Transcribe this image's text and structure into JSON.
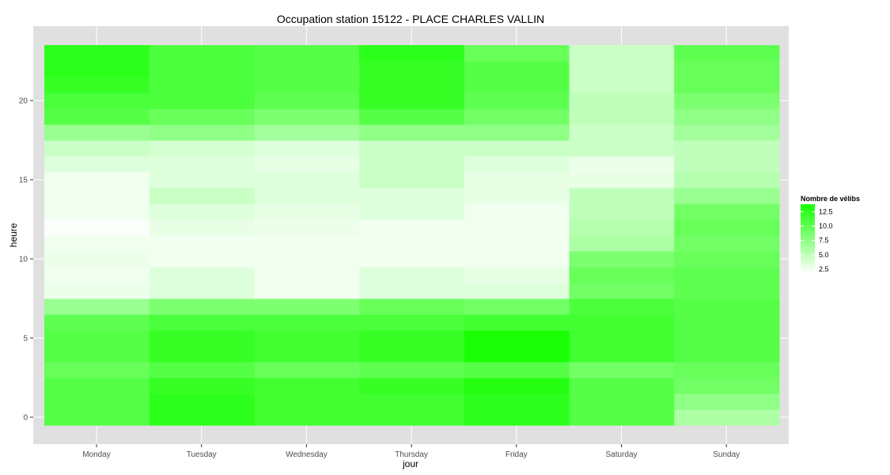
{
  "chart_data": {
    "type": "heatmap",
    "title": "Occupation station 15122 - PLACE CHARLES VALLIN",
    "xlabel": "jour",
    "ylabel": "heure",
    "categories": [
      "Monday",
      "Tuesday",
      "Wednesday",
      "Thursday",
      "Friday",
      "Saturday",
      "Sunday"
    ],
    "hours": [
      0,
      1,
      2,
      3,
      4,
      5,
      6,
      7,
      8,
      9,
      10,
      11,
      12,
      13,
      14,
      15,
      16,
      17,
      18,
      19,
      20,
      21,
      22,
      23
    ],
    "values": [
      [
        10.5,
        12.5,
        11.5,
        11.5,
        12.5,
        10.5,
        6.0
      ],
      [
        10.5,
        12.5,
        11.5,
        11.5,
        12.5,
        10.5,
        7.5
      ],
      [
        10.5,
        12.0,
        11.5,
        12.0,
        13.0,
        10.5,
        9.0
      ],
      [
        9.5,
        10.5,
        9.5,
        10.0,
        10.5,
        9.0,
        9.5
      ],
      [
        10.5,
        12.0,
        11.5,
        12.0,
        13.5,
        11.5,
        10.5
      ],
      [
        10.5,
        12.0,
        11.5,
        12.0,
        13.5,
        11.5,
        10.5
      ],
      [
        10.0,
        11.0,
        11.0,
        11.0,
        11.5,
        11.5,
        10.5
      ],
      [
        7.0,
        8.5,
        8.5,
        9.5,
        9.0,
        11.0,
        10.5
      ],
      [
        2.8,
        3.5,
        2.5,
        3.5,
        3.5,
        9.0,
        10.0
      ],
      [
        2.5,
        3.5,
        2.5,
        3.5,
        3.0,
        9.5,
        10.0
      ],
      [
        2.8,
        2.5,
        2.5,
        2.5,
        2.5,
        8.5,
        9.5
      ],
      [
        2.5,
        2.5,
        2.5,
        2.5,
        2.5,
        6.0,
        9.0
      ],
      [
        2.0,
        3.0,
        2.8,
        2.5,
        2.5,
        5.5,
        9.5
      ],
      [
        2.5,
        3.5,
        3.0,
        3.5,
        2.5,
        5.0,
        9.0
      ],
      [
        2.5,
        4.5,
        3.5,
        3.5,
        3.0,
        5.0,
        7.0
      ],
      [
        2.5,
        3.5,
        3.5,
        4.5,
        3.0,
        3.0,
        5.5
      ],
      [
        3.5,
        3.5,
        3.0,
        4.5,
        3.5,
        2.8,
        5.0
      ],
      [
        4.5,
        4.0,
        3.5,
        4.5,
        4.5,
        4.5,
        5.0
      ],
      [
        7.0,
        7.5,
        6.5,
        7.5,
        7.5,
        4.5,
        6.5
      ],
      [
        10.5,
        9.5,
        8.5,
        10.5,
        9.0,
        5.0,
        7.5
      ],
      [
        11.0,
        11.0,
        10.0,
        12.0,
        10.0,
        5.0,
        8.5
      ],
      [
        12.0,
        11.0,
        10.5,
        12.0,
        10.5,
        4.5,
        9.5
      ],
      [
        12.5,
        11.0,
        10.5,
        12.0,
        10.5,
        4.5,
        9.5
      ],
      [
        12.5,
        11.0,
        10.5,
        12.5,
        9.5,
        4.5,
        10.0
      ]
    ],
    "yticks": [
      0,
      5,
      10,
      15,
      20
    ],
    "ylim": [
      -0.5,
      23.5
    ],
    "grid": true,
    "legend": {
      "title": "Nombre de vélibs",
      "position": "right",
      "breaks": [
        "12.5",
        "10.0",
        "7.5",
        "5.0",
        "2.5"
      ],
      "break_values": [
        12.5,
        10.0,
        7.5,
        5.0,
        2.5
      ],
      "range": [
        1.8,
        13.8
      ]
    },
    "colors": {
      "low": "#ffffff",
      "high": "#14ff00",
      "panel": "#e0e0e0",
      "grid": "#ffffff"
    }
  }
}
